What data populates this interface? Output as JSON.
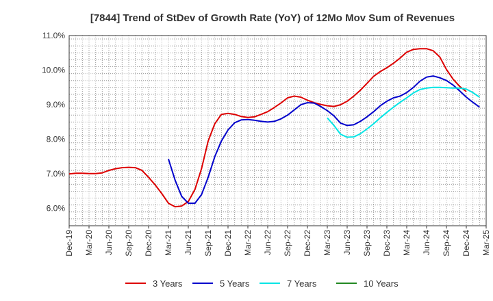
{
  "chart_data": {
    "type": "line",
    "title": "[7844]  Trend of StDev of Growth Rate (YoY) of 12Mo Mov Sum of Revenues",
    "xlabel": "",
    "ylabel": "",
    "ylim": [
      5.5,
      11.0
    ],
    "yticks": [
      6.0,
      7.0,
      8.0,
      9.0,
      10.0,
      11.0
    ],
    "ytick_labels": [
      "6.0%",
      "7.0%",
      "8.0%",
      "9.0%",
      "10.0%",
      "11.0%"
    ],
    "x_start": "Dec-19",
    "x_tick_labels": [
      "Dec-19",
      "Mar-20",
      "Jun-20",
      "Sep-20",
      "Dec-20",
      "Mar-21",
      "Jun-21",
      "Sep-21",
      "Dec-21",
      "Mar-22",
      "Jun-22",
      "Sep-22",
      "Dec-22",
      "Mar-23",
      "Jun-23",
      "Sep-23",
      "Dec-23",
      "Mar-24",
      "Jun-24",
      "Sep-24",
      "Dec-24",
      "Mar-25"
    ],
    "grid": true,
    "legend_position": "bottom",
    "series": [
      {
        "name": "3 Years",
        "color": "#dd0000",
        "start_index": 0,
        "values": [
          7.0,
          7.02,
          7.02,
          7.01,
          7.01,
          7.03,
          7.1,
          7.15,
          7.18,
          7.19,
          7.18,
          7.1,
          6.9,
          6.68,
          6.43,
          6.15,
          6.05,
          6.07,
          6.2,
          6.55,
          7.15,
          7.95,
          8.45,
          8.72,
          8.75,
          8.72,
          8.66,
          8.63,
          8.65,
          8.72,
          8.8,
          8.92,
          9.05,
          9.2,
          9.25,
          9.22,
          9.13,
          9.06,
          9.01,
          8.97,
          8.95,
          9.0,
          9.1,
          9.25,
          9.42,
          9.62,
          9.82,
          9.96,
          10.07,
          10.2,
          10.35,
          10.52,
          10.6,
          10.62,
          10.62,
          10.56,
          10.38,
          10.02,
          9.74,
          9.53,
          9.38
        ]
      },
      {
        "name": "5 Years",
        "color": "#0000cc",
        "start_index": 15,
        "values": [
          7.43,
          6.82,
          6.35,
          6.15,
          6.15,
          6.4,
          6.9,
          7.5,
          7.95,
          8.27,
          8.48,
          8.56,
          8.57,
          8.55,
          8.52,
          8.5,
          8.52,
          8.59,
          8.7,
          8.85,
          9.0,
          9.06,
          9.05,
          8.95,
          8.83,
          8.68,
          8.47,
          8.4,
          8.42,
          8.52,
          8.65,
          8.8,
          8.97,
          9.1,
          9.2,
          9.25,
          9.35,
          9.5,
          9.68,
          9.8,
          9.83,
          9.78,
          9.7,
          9.57,
          9.4,
          9.22,
          9.07,
          8.93
        ]
      },
      {
        "name": "7 Years",
        "color": "#00e5e5",
        "start_index": 39,
        "values": [
          8.62,
          8.4,
          8.15,
          8.06,
          8.07,
          8.16,
          8.3,
          8.45,
          8.62,
          8.78,
          8.93,
          9.07,
          9.2,
          9.34,
          9.44,
          9.48,
          9.5,
          9.5,
          9.49,
          9.48,
          9.48,
          9.45,
          9.35,
          9.22
        ]
      },
      {
        "name": "10 Years",
        "color": "#228822",
        "start_index": 0,
        "values": []
      }
    ]
  }
}
